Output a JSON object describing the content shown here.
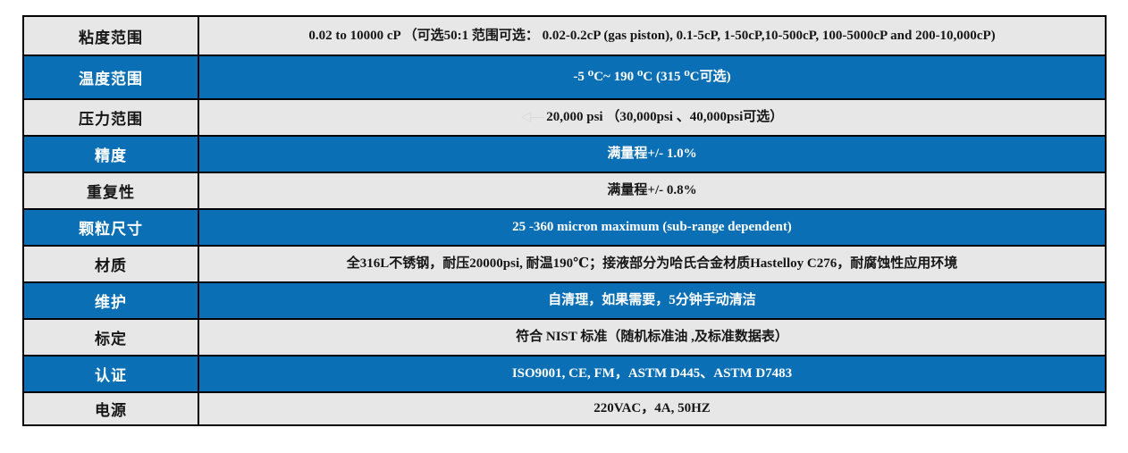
{
  "table": {
    "colors": {
      "row_blue": "#0b6fb6",
      "row_gray": "#e7e7e7",
      "border": "#000000",
      "text_on_blue": "#ffffff",
      "text_on_gray": "#161616"
    },
    "rows": [
      {
        "label": "粘度范围",
        "value": "0.02 to 10000 cP （可选50:1 范围可选：  0.02-0.2cP (gas piston), 0.1-5cP, 1-50cP,10-500cP, 100-5000cP and 200-10,000cP)"
      },
      {
        "label": "温度范围",
        "value": "-5 ⁰C~ 190 ⁰C (315 ⁰C可选)"
      },
      {
        "label": "压力范围",
        "value_prefix": "◁—",
        "value": "20,000 psi （30,000psi 、40,000psi可选）"
      },
      {
        "label": "精度",
        "value": "满量程+/- 1.0%"
      },
      {
        "label": "重复性",
        "value": "满量程+/- 0.8%"
      },
      {
        "label": "颗粒尺寸",
        "value": "25 -360 micron maximum (sub-range dependent)"
      },
      {
        "label": "材质",
        "value": "全316L不锈钢，耐压20000psi, 耐温190℃；接液部分为哈氏合金材质Hastelloy C276，耐腐蚀性应用环境"
      },
      {
        "label": "维护",
        "value": "自清理，如果需要，5分钟手动清洁"
      },
      {
        "label": "标定",
        "value": "符合 NIST 标准（随机标准油 ,及标准数据表）"
      },
      {
        "label": "认证",
        "value": "ISO9001, CE, FM，ASTM D445、ASTM D7483"
      },
      {
        "label": "电源",
        "value": "220VAC，4A, 50HZ"
      }
    ]
  }
}
